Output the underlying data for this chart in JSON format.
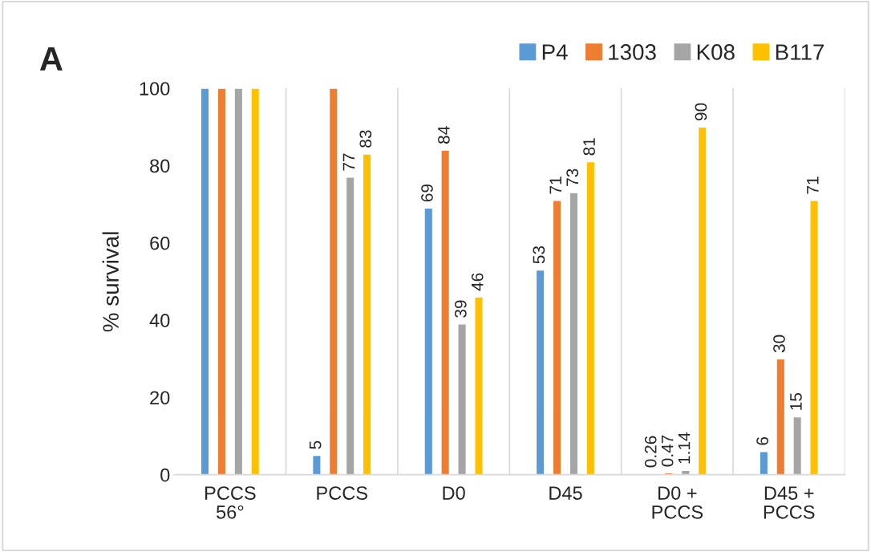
{
  "chart_data": {
    "type": "bar",
    "ylabel": "% survival",
    "categories": [
      "PCCS\n56°",
      "PCCS",
      "D0",
      "D45",
      "D0 +\nPCCS",
      "D45 +\nPCCS"
    ],
    "series": [
      {
        "name": "P4",
        "color": "#5b9bd5",
        "values": [
          100,
          5,
          69,
          53,
          0.26,
          6
        ],
        "value_labels": [
          null,
          "5",
          "69",
          "53",
          "0.26",
          "6"
        ]
      },
      {
        "name": "1303",
        "color": "#ed7d31",
        "values": [
          100,
          100,
          84,
          71,
          0.47,
          30
        ],
        "value_labels": [
          null,
          null,
          "84",
          "71",
          "0.47",
          "30"
        ]
      },
      {
        "name": "K08",
        "color": "#a5a5a5",
        "values": [
          100,
          77,
          39,
          73,
          1.14,
          15
        ],
        "value_labels": [
          null,
          "77",
          "39",
          "73",
          "1.14",
          "15"
        ]
      },
      {
        "name": "B117",
        "color": "#ffc000",
        "values": [
          100,
          83,
          46,
          81,
          90,
          71
        ],
        "value_labels": [
          null,
          "83",
          "46",
          "81",
          "90",
          "71"
        ]
      }
    ],
    "ylim": [
      0,
      100
    ],
    "yticks": [
      0,
      20,
      40,
      60,
      80,
      100
    ],
    "grid": "x",
    "legend": "top right",
    "annotations": [
      "A"
    ]
  }
}
